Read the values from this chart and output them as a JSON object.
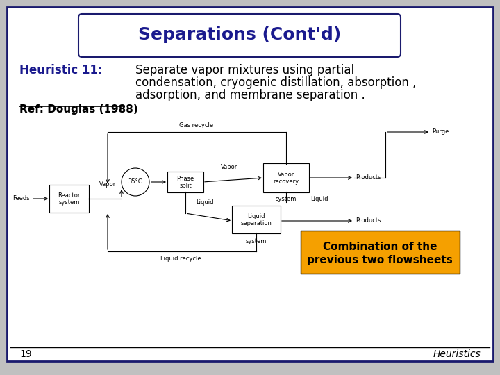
{
  "title": "Separations (Cont'd)",
  "heuristic_label": "Heuristic 11:",
  "heuristic_text_line1": "Separate vapor mixtures using partial",
  "heuristic_text_line2": "condensation, cryogenic distillation, absorption ,",
  "heuristic_text_line3": "adsorption, and membrane separation .",
  "ref_text": "Ref: Douglas (1988)",
  "page_number": "19",
  "footer_right": "Heuristics",
  "combo_box_text1": "Combination of the",
  "combo_box_text2": "previous two flowsheets",
  "bg_color": "#ffffff",
  "border_color": "#1a1a6e",
  "title_color": "#1a1a8e",
  "heuristic_label_color": "#1a1a8e",
  "heuristic_text_color": "#000000",
  "ref_color": "#000000",
  "combo_box_bg": "#f5a000",
  "combo_box_text_color": "#000000",
  "outer_bg": "#c0c0c0"
}
